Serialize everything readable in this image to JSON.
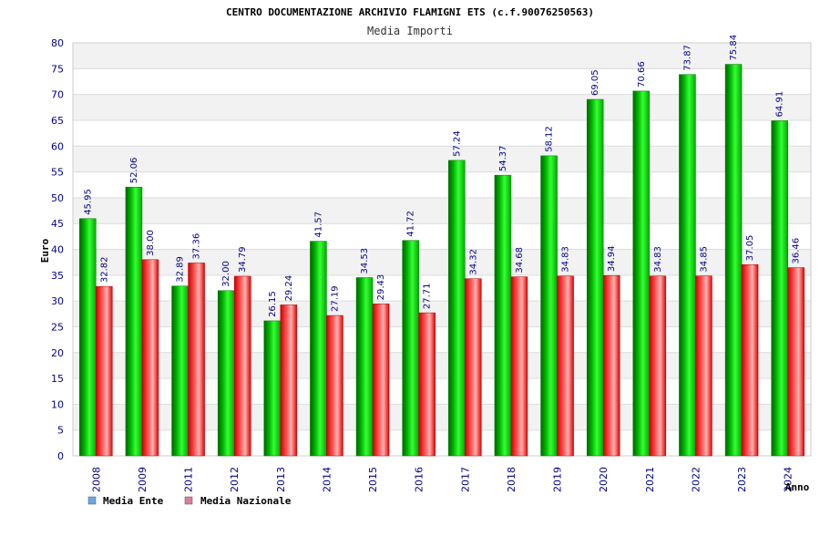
{
  "chart_data": {
    "type": "bar",
    "title": "CENTRO DOCUMENTAZIONE ARCHIVIO FLAMIGNI ETS (c.f.90076250563)",
    "subtitle": "Media Importi",
    "xlabel": "Anno",
    "ylabel": "Euro",
    "ylim": [
      0,
      80
    ],
    "yticks": [
      0,
      5,
      10,
      15,
      20,
      25,
      30,
      35,
      40,
      45,
      50,
      55,
      60,
      65,
      70,
      75,
      80
    ],
    "grid": true,
    "legend_position": "bottom-left",
    "categories": [
      "2008",
      "2009",
      "2011",
      "2012",
      "2013",
      "2014",
      "2015",
      "2016",
      "2017",
      "2018",
      "2019",
      "2020",
      "2021",
      "2022",
      "2023",
      "2024"
    ],
    "series": [
      {
        "name": "Media Ente",
        "color": "#00cc00",
        "values": [
          45.95,
          52.06,
          32.89,
          32.0,
          26.15,
          41.57,
          34.53,
          41.72,
          57.24,
          54.37,
          58.12,
          69.05,
          70.66,
          73.87,
          75.84,
          64.91
        ],
        "labels": [
          "45.95",
          "52.06",
          "32.89",
          "32.00",
          "26.15",
          "41.57",
          "34.53",
          "41.72",
          "57.24",
          "54.37",
          "58.12",
          "69.05",
          "70.66",
          "73.87",
          "75.84",
          "64.91"
        ]
      },
      {
        "name": "Media Nazionale",
        "color": "#e8303a",
        "values": [
          32.82,
          38.0,
          37.36,
          34.79,
          29.24,
          27.19,
          29.43,
          27.71,
          34.32,
          34.68,
          34.83,
          34.94,
          34.83,
          34.85,
          37.05,
          36.46
        ],
        "labels": [
          "32.82",
          "38.00",
          "37.36",
          "34.79",
          "29.24",
          "27.19",
          "29.43",
          "27.71",
          "34.32",
          "34.68",
          "34.83",
          "34.94",
          "34.83",
          "34.85",
          "37.05",
          "36.46"
        ]
      }
    ],
    "legend": [
      {
        "name": "Media Ente",
        "swatch_color": "#6aa6e8"
      },
      {
        "name": "Media Nazionale",
        "swatch_color": "#e27aa0"
      }
    ]
  }
}
